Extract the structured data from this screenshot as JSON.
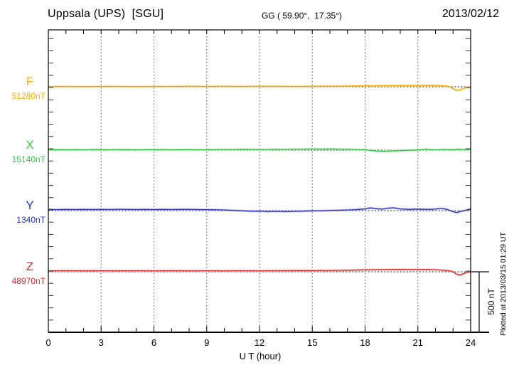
{
  "header": {
    "station": "Uppsala (UPS)  [SGU]",
    "coords": "GG ( 59.90°,  17.35°)",
    "date": "2013/02/12"
  },
  "footer": {
    "xlabel": "U T (hour)",
    "plotted_at": "Plotted at 2013/03/15 01:29 UT"
  },
  "scale_bar": {
    "label": "500 nT",
    "value_nT": 500
  },
  "colors": {
    "frame": "#000000",
    "grid": "#555555",
    "baseline": "#222222"
  },
  "chart_data": {
    "type": "line",
    "title": "Uppsala (UPS) [SGU] magnetogram",
    "xlabel": "U T (hour)",
    "xlim": [
      0,
      24
    ],
    "x_ticks": [
      "0",
      "3",
      "6",
      "9",
      "12",
      "15",
      "18",
      "21",
      "24"
    ],
    "x_tick_hours": [
      0,
      3,
      6,
      9,
      12,
      15,
      18,
      21,
      24
    ],
    "grid_hours": [
      3,
      6,
      9,
      12,
      15,
      18,
      21
    ],
    "y_minor_tick_nT": 100,
    "scale_bar_nT": 500,
    "series": [
      {
        "name": "F",
        "baseline_value_label": "51280nT",
        "baseline_nT": 51280,
        "label_color": "#FFAE00",
        "color": "#F5A400",
        "halo_color": "#FFD685",
        "points": [
          [
            0,
            2
          ],
          [
            1,
            3
          ],
          [
            2,
            2
          ],
          [
            3,
            3
          ],
          [
            4,
            3
          ],
          [
            5,
            2
          ],
          [
            6,
            3
          ],
          [
            7,
            3
          ],
          [
            8,
            4
          ],
          [
            9,
            3
          ],
          [
            10,
            4
          ],
          [
            11,
            3
          ],
          [
            12,
            4
          ],
          [
            13,
            4
          ],
          [
            14,
            3
          ],
          [
            15,
            4
          ],
          [
            16,
            5
          ],
          [
            17,
            6
          ],
          [
            18,
            8
          ],
          [
            19,
            9
          ],
          [
            20,
            10
          ],
          [
            21,
            10
          ],
          [
            21.5,
            11
          ],
          [
            22,
            10
          ],
          [
            22.5,
            7
          ],
          [
            22.8,
            2
          ],
          [
            23.0,
            -14
          ],
          [
            23.2,
            -30
          ],
          [
            23.4,
            -26
          ],
          [
            23.6,
            -12
          ],
          [
            23.8,
            -4
          ],
          [
            24,
            0
          ]
        ]
      },
      {
        "name": "X",
        "baseline_value_label": "15140nT",
        "baseline_nT": 15140,
        "label_color": "#2ECC40",
        "color": "#2EC840",
        "halo_color": "#9CEFA4",
        "points": [
          [
            0,
            3
          ],
          [
            0.5,
            5
          ],
          [
            1,
            3
          ],
          [
            1.5,
            4
          ],
          [
            2,
            3
          ],
          [
            2.5,
            5
          ],
          [
            3,
            4
          ],
          [
            3.5,
            3
          ],
          [
            4,
            4
          ],
          [
            4.5,
            5
          ],
          [
            5,
            3
          ],
          [
            5.5,
            4
          ],
          [
            6,
            4
          ],
          [
            6.5,
            5
          ],
          [
            7,
            3
          ],
          [
            7.5,
            4
          ],
          [
            8,
            4
          ],
          [
            8.5,
            3
          ],
          [
            9,
            4
          ],
          [
            9.5,
            5
          ],
          [
            10,
            6
          ],
          [
            10.5,
            5
          ],
          [
            11,
            7
          ],
          [
            11.5,
            6
          ],
          [
            12,
            5
          ],
          [
            12.5,
            6
          ],
          [
            13,
            8
          ],
          [
            13.5,
            6
          ],
          [
            14,
            8
          ],
          [
            14.5,
            9
          ],
          [
            15,
            10
          ],
          [
            15.5,
            8
          ],
          [
            16,
            10
          ],
          [
            16.5,
            9
          ],
          [
            17,
            7
          ],
          [
            17.5,
            5
          ],
          [
            18,
            3
          ],
          [
            18.5,
            -5
          ],
          [
            19,
            -10
          ],
          [
            19.3,
            -9
          ],
          [
            19.6,
            -6
          ],
          [
            20,
            -4
          ],
          [
            20.5,
            -1
          ],
          [
            21,
            2
          ],
          [
            21.3,
            5
          ],
          [
            21.5,
            9
          ],
          [
            21.7,
            4
          ],
          [
            22,
            3
          ],
          [
            22.5,
            5
          ],
          [
            23,
            4
          ],
          [
            23.3,
            7
          ],
          [
            23.6,
            5
          ],
          [
            24,
            6
          ]
        ]
      },
      {
        "name": "Y",
        "baseline_value_label": "1340nT",
        "baseline_nT": 1340,
        "label_color": "#2233DD",
        "color": "#3333CC",
        "halo_color": "#9999DD",
        "points": [
          [
            0,
            10
          ],
          [
            0.5,
            8
          ],
          [
            1,
            10
          ],
          [
            1.5,
            9
          ],
          [
            2,
            10
          ],
          [
            2.5,
            9
          ],
          [
            3,
            10
          ],
          [
            3.5,
            9
          ],
          [
            4,
            11
          ],
          [
            4.5,
            10
          ],
          [
            5,
            9
          ],
          [
            5.5,
            10
          ],
          [
            6,
            9
          ],
          [
            6.5,
            10
          ],
          [
            7,
            9
          ],
          [
            7.5,
            10
          ],
          [
            8,
            10
          ],
          [
            8.5,
            9
          ],
          [
            9,
            8
          ],
          [
            9.5,
            7
          ],
          [
            10,
            5
          ],
          [
            10.5,
            2
          ],
          [
            11,
            -1
          ],
          [
            11.5,
            -5
          ],
          [
            12,
            -4
          ],
          [
            12.5,
            -7
          ],
          [
            13,
            -6
          ],
          [
            13.5,
            -8
          ],
          [
            14,
            -6
          ],
          [
            14.5,
            -4
          ],
          [
            15,
            -2
          ],
          [
            15.5,
            -1
          ],
          [
            16,
            1
          ],
          [
            16.5,
            3
          ],
          [
            17,
            5
          ],
          [
            17.5,
            8
          ],
          [
            18,
            14
          ],
          [
            18.3,
            22
          ],
          [
            18.6,
            16
          ],
          [
            19,
            12
          ],
          [
            19.3,
            20
          ],
          [
            19.6,
            23
          ],
          [
            20,
            14
          ],
          [
            20.5,
            10
          ],
          [
            21,
            13
          ],
          [
            21.5,
            10
          ],
          [
            22,
            12
          ],
          [
            22.3,
            18
          ],
          [
            22.6,
            12
          ],
          [
            23,
            -8
          ],
          [
            23.2,
            -16
          ],
          [
            23.5,
            -4
          ],
          [
            23.7,
            2
          ],
          [
            24,
            14
          ]
        ]
      },
      {
        "name": "Z",
        "baseline_value_label": "48970nT",
        "baseline_nT": 48970,
        "label_color": "#EE2222",
        "color": "#DD2222",
        "halo_color": "#F6A8A8",
        "points": [
          [
            0,
            8
          ],
          [
            1,
            9
          ],
          [
            2,
            8
          ],
          [
            3,
            9
          ],
          [
            4,
            8
          ],
          [
            5,
            9
          ],
          [
            6,
            8
          ],
          [
            7,
            9
          ],
          [
            8,
            8
          ],
          [
            9,
            9
          ],
          [
            10,
            8
          ],
          [
            11,
            9
          ],
          [
            12,
            8
          ],
          [
            13,
            9
          ],
          [
            14,
            10
          ],
          [
            15,
            10
          ],
          [
            16,
            11
          ],
          [
            17,
            13
          ],
          [
            18,
            16
          ],
          [
            19,
            18
          ],
          [
            20,
            19
          ],
          [
            21,
            18
          ],
          [
            21.5,
            19
          ],
          [
            22,
            17
          ],
          [
            22.5,
            13
          ],
          [
            22.8,
            8
          ],
          [
            23,
            0
          ],
          [
            23.2,
            -20
          ],
          [
            23.4,
            -27
          ],
          [
            23.6,
            -15
          ],
          [
            23.8,
            -4
          ],
          [
            24,
            2
          ]
        ]
      }
    ]
  }
}
